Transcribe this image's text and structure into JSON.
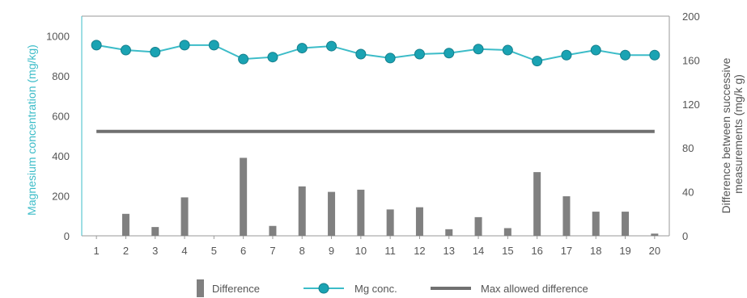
{
  "chart_data": {
    "type": "bar+line",
    "categories": [
      "1",
      "2",
      "3",
      "4",
      "5",
      "6",
      "7",
      "8",
      "9",
      "10",
      "11",
      "12",
      "13",
      "14",
      "15",
      "16",
      "17",
      "18",
      "19",
      "20"
    ],
    "series": [
      {
        "name": "Difference",
        "type": "bar",
        "axis": "right",
        "values": [
          0,
          20,
          8,
          35,
          0,
          71,
          9,
          45,
          40,
          42,
          24,
          26,
          6,
          17,
          7,
          58,
          36,
          22,
          22,
          2
        ]
      },
      {
        "name": "Mg conc.",
        "type": "line",
        "axis": "left",
        "values": [
          955,
          930,
          920,
          955,
          955,
          885,
          895,
          940,
          950,
          910,
          890,
          910,
          915,
          935,
          930,
          875,
          905,
          930,
          905,
          905
        ]
      },
      {
        "name": "Max allowed difference",
        "type": "line",
        "axis": "right",
        "values": [
          95,
          95,
          95,
          95,
          95,
          95,
          95,
          95,
          95,
          95,
          95,
          95,
          95,
          95,
          95,
          95,
          95,
          95,
          95,
          95
        ]
      }
    ],
    "ylabel": "Magnesium concentration (mg/kg)",
    "ylabel_right": [
      "Difference between successive",
      "measurements (mg/k g)"
    ],
    "ylim": [
      0,
      1100
    ],
    "ylim_right": [
      0,
      200
    ],
    "yticks": [
      "0",
      "200",
      "400",
      "600",
      "800",
      "1000"
    ],
    "yticks_right": [
      "0",
      "40",
      "80",
      "120",
      "160",
      "200"
    ],
    "legend": [
      "Difference",
      "Mg conc.",
      "Max allowed difference"
    ],
    "legend_position": "bottom",
    "colors": {
      "bar": "#808080",
      "line": "#3cbcc8",
      "marker": "#1aa3b3",
      "marker_stroke": "#157f8c",
      "max_line": "#707070",
      "axis_left": "#3cbcc8",
      "axis": "#9a9a9a"
    }
  }
}
